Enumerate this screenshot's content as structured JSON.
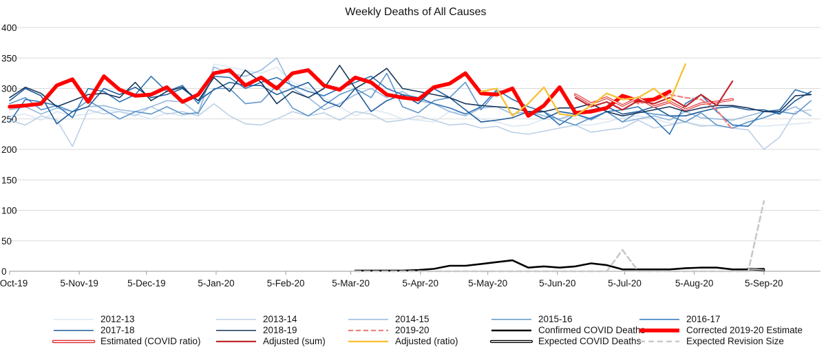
{
  "chart_data": {
    "type": "line",
    "title": "Weekly Deaths of All Causes",
    "ylim": [
      0,
      400
    ],
    "yticks": [
      0,
      50,
      100,
      150,
      200,
      250,
      300,
      350,
      400
    ],
    "grid": "horizontal",
    "legend_position": "bottom",
    "x_labels": [
      "5-Oct-19",
      "5-Nov-19",
      "5-Dec-19",
      "5-Jan-20",
      "5-Feb-20",
      "5-Mar-20",
      "5-Apr-20",
      "5-May-20",
      "5-Jun-20",
      "5-Jul-20",
      "5-Aug-20",
      "5-Sep-20"
    ],
    "x_label_weeks": [
      0,
      4.43,
      8.71,
      13.14,
      17.57,
      21.71,
      26.14,
      30.43,
      34.86,
      39.14,
      43.57,
      48
    ],
    "x_max_week": 51.6,
    "series": [
      {
        "name": "2012-13",
        "color": "#dbe7f3",
        "width": 1.6,
        "start": 0,
        "values": [
          255,
          258,
          248,
          262,
          255,
          258,
          265,
          262,
          258,
          250,
          260,
          255,
          262,
          340,
          335,
          330,
          325,
          335,
          310,
          300,
          285,
          270,
          255,
          265,
          260,
          250,
          248,
          245,
          262,
          260,
          250,
          245,
          238,
          240,
          250,
          248,
          240,
          240,
          245,
          252,
          255,
          250,
          243,
          245,
          240,
          238,
          235,
          240,
          238,
          240,
          242,
          244
        ]
      },
      {
        "name": "2013-14",
        "color": "#bccfe5",
        "width": 1.6,
        "start": 0,
        "values": [
          248,
          240,
          255,
          248,
          205,
          265,
          258,
          262,
          255,
          270,
          258,
          262,
          255,
          275,
          255,
          242,
          240,
          250,
          262,
          255,
          260,
          248,
          262,
          258,
          245,
          248,
          255,
          248,
          240,
          242,
          235,
          238,
          228,
          225,
          230,
          235,
          240,
          228,
          232,
          235,
          248,
          235,
          240,
          245,
          238,
          240,
          235,
          232,
          200,
          220,
          262,
          265
        ]
      },
      {
        "name": "2014-15",
        "color": "#95b9dd",
        "width": 1.6,
        "start": 0,
        "values": [
          265,
          270,
          258,
          268,
          262,
          270,
          272,
          265,
          262,
          270,
          280,
          278,
          258,
          335,
          325,
          320,
          330,
          350,
          300,
          285,
          265,
          275,
          290,
          300,
          285,
          295,
          280,
          275,
          262,
          255,
          268,
          270,
          258,
          262,
          255,
          250,
          258,
          248,
          262,
          245,
          250,
          255,
          248,
          262,
          252,
          250,
          248,
          255,
          262,
          260,
          270,
          255
        ]
      },
      {
        "name": "2015-16",
        "color": "#5c95ca",
        "width": 1.6,
        "start": 0,
        "values": [
          275,
          285,
          265,
          272,
          262,
          280,
          265,
          250,
          262,
          258,
          270,
          258,
          260,
          300,
          300,
          275,
          278,
          305,
          268,
          255,
          272,
          290,
          300,
          285,
          325,
          270,
          260,
          280,
          285,
          310,
          265,
          295,
          298,
          258,
          262,
          248,
          240,
          252,
          262,
          245,
          262,
          258,
          255,
          245,
          260,
          240,
          235,
          245,
          252,
          262,
          258,
          280
        ]
      },
      {
        "name": "2016-17",
        "color": "#2e73b6",
        "width": 1.6,
        "start": 0,
        "values": [
          245,
          282,
          278,
          272,
          252,
          300,
          295,
          278,
          290,
          320,
          295,
          305,
          275,
          320,
          318,
          300,
          310,
          318,
          305,
          295,
          288,
          300,
          310,
          320,
          300,
          290,
          285,
          275,
          268,
          258,
          270,
          298,
          282,
          270,
          262,
          240,
          258,
          250,
          262,
          265,
          270,
          250,
          225,
          275,
          290,
          262,
          240,
          238,
          262,
          265,
          298,
          290
        ]
      },
      {
        "name": "2017-18",
        "color": "#1f5b9a",
        "width": 1.6,
        "start": 0,
        "values": [
          280,
          300,
          288,
          242,
          262,
          270,
          300,
          290,
          302,
          285,
          290,
          300,
          280,
          298,
          310,
          305,
          305,
          290,
          300,
          310,
          280,
          270,
          300,
          262,
          280,
          290,
          275,
          300,
          285,
          265,
          245,
          248,
          252,
          262,
          250,
          262,
          258,
          265,
          270,
          258,
          262,
          270,
          255,
          255,
          262,
          268,
          270,
          265,
          265,
          258,
          280,
          295
        ]
      },
      {
        "name": "2018-19",
        "color": "#17355a",
        "width": 1.6,
        "start": 0,
        "values": [
          285,
          302,
          292,
          270,
          280,
          290,
          292,
          285,
          310,
          280,
          295,
          302,
          280,
          318,
          295,
          330,
          310,
          275,
          295,
          285,
          300,
          338,
          300,
          315,
          333,
          300,
          295,
          290,
          285,
          275,
          272,
          270,
          268,
          262,
          262,
          268,
          268,
          275,
          262,
          255,
          260,
          265,
          270,
          262,
          268,
          272,
          272,
          268,
          262,
          262,
          288,
          290
        ]
      },
      {
        "name": "2019-20",
        "color": "#f08080",
        "width": 2.2,
        "dash": "7,4",
        "start": 0,
        "values": [
          270,
          272,
          275,
          305,
          315,
          278,
          320,
          298,
          288,
          290,
          302,
          278,
          290,
          325,
          330,
          305,
          318,
          300,
          325,
          330,
          305,
          298,
          318,
          310,
          290,
          285,
          282,
          302,
          308,
          325,
          292,
          290,
          300,
          255,
          272,
          302,
          260,
          262,
          268,
          288,
          275,
          280,
          290,
          285,
          282,
          265,
          232
        ]
      },
      {
        "name": "Confirmed COVID Deaths",
        "color": "#000000",
        "width": 2.6,
        "start": 22,
        "values": [
          1,
          1,
          1,
          1,
          2,
          4,
          9,
          9,
          12,
          15,
          18,
          6,
          8,
          6,
          8,
          13,
          10,
          3,
          3,
          3,
          3,
          5,
          6,
          6,
          3,
          3,
          4
        ]
      },
      {
        "name": "Corrected 2019-20 Estimate",
        "color": "#ff0000",
        "width": 5.5,
        "start": 0,
        "values": [
          270,
          272,
          275,
          305,
          315,
          278,
          320,
          298,
          288,
          290,
          302,
          278,
          290,
          325,
          330,
          305,
          318,
          300,
          325,
          330,
          305,
          298,
          318,
          310,
          290,
          285,
          282,
          302,
          308,
          325,
          292,
          290,
          300,
          255,
          272,
          302,
          260,
          262,
          268,
          288,
          280,
          282,
          295
        ]
      },
      {
        "name": "Estimated (COVID ratio)",
        "color": "#e0272b",
        "width": 3.6,
        "outline": true,
        "start": 36,
        "values": [
          290,
          275,
          285,
          272,
          285,
          270,
          278,
          265,
          275,
          278,
          282
        ]
      },
      {
        "name": "Adjusted (sum)",
        "color": "#c0282d",
        "width": 2.2,
        "start": 36,
        "values": [
          285,
          270,
          278,
          265,
          280,
          275,
          285,
          270,
          290,
          272,
          312
        ]
      },
      {
        "name": "Adjusted (ratio)",
        "color": "#f7c23a",
        "width": 2.4,
        "start": 30,
        "values": [
          295,
          300,
          255,
          275,
          302,
          258,
          255,
          272,
          292,
          282,
          285,
          300,
          278,
          340
        ]
      },
      {
        "name": "Expected COVID Deaths",
        "color": "#000000",
        "width": 3.2,
        "outline": true,
        "start": 47,
        "values": [
          4,
          2
        ]
      },
      {
        "name": "Expected Revision Size",
        "color": "#c8c8c8",
        "width": 2.6,
        "dash": "8,5",
        "start": 22,
        "values": [
          0,
          0,
          0,
          0,
          0,
          0,
          0,
          0,
          0,
          0,
          0,
          0,
          0,
          0,
          0,
          0,
          0,
          35,
          0,
          0,
          0,
          0,
          0,
          0,
          0,
          0,
          115
        ]
      }
    ]
  },
  "legend_rows": [
    [
      "2012-13",
      "2013-14",
      "2014-15",
      "2015-16",
      "2016-17"
    ],
    [
      "2017-18",
      "2018-19",
      "2019-20",
      "Confirmed COVID Deaths",
      "Corrected 2019-20 Estimate"
    ],
    [
      "Estimated (COVID ratio)",
      "Adjusted (sum)",
      "Adjusted (ratio)",
      "Expected COVID Deaths",
      "Expected Revision Size"
    ]
  ]
}
